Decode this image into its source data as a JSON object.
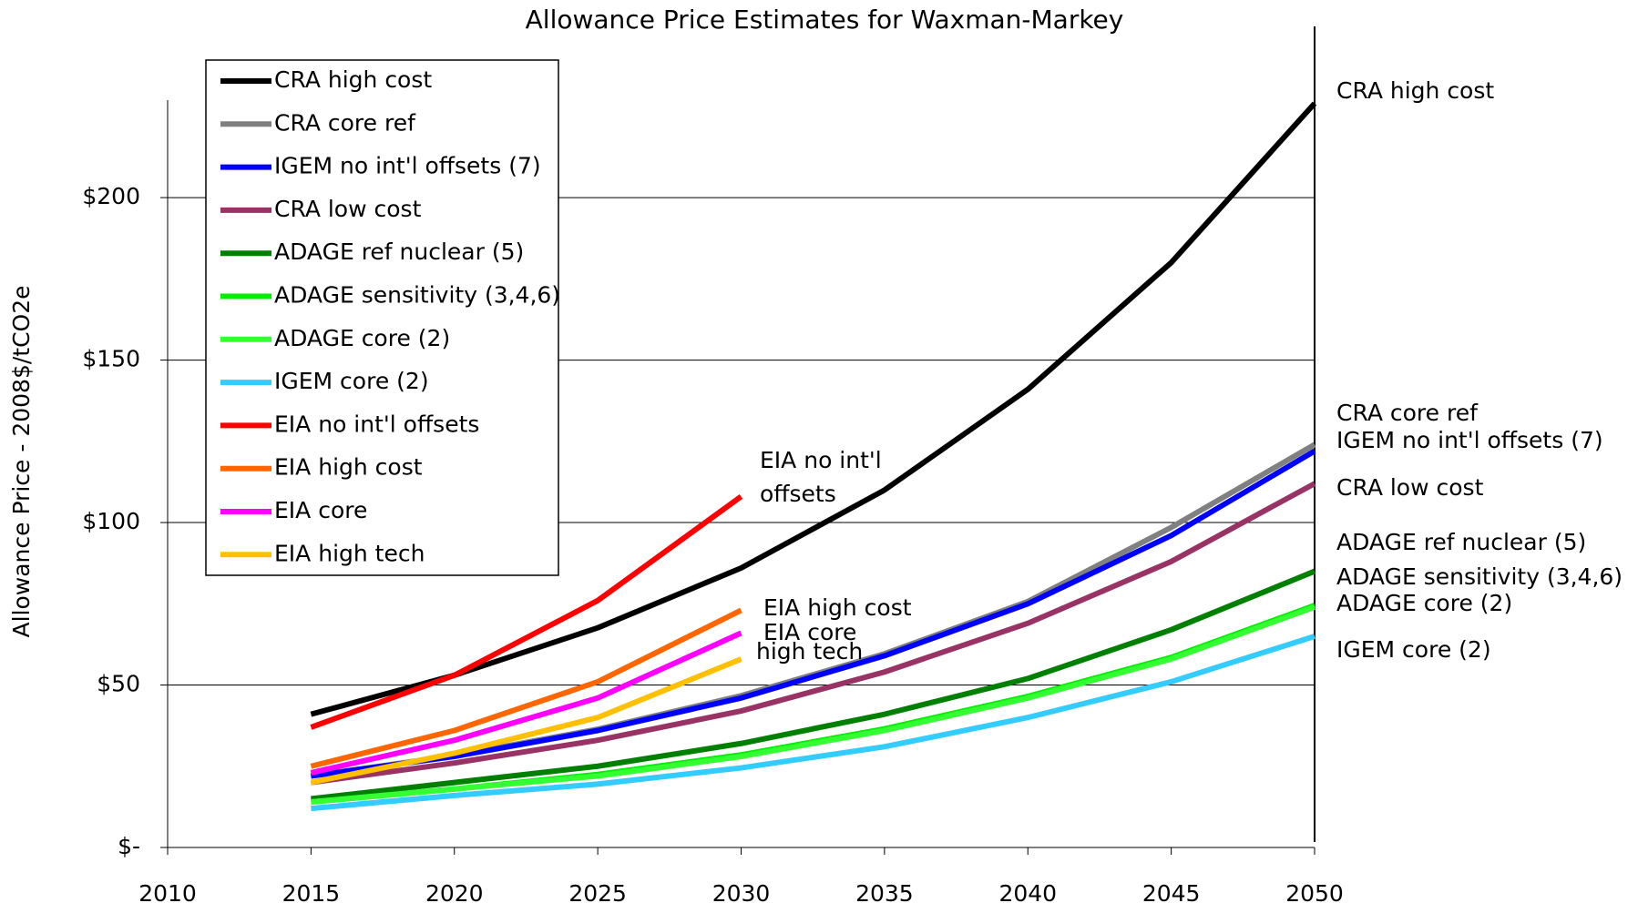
{
  "chart_data": {
    "type": "line",
    "title": "Allowance Price Estimates for Waxman-Markey",
    "y_label": "Allowance Price - 2008$/tCO2e",
    "x": [
      2015,
      2020,
      2025,
      2030,
      2035,
      2040,
      2045,
      2050
    ],
    "xlim": [
      2010,
      2050
    ],
    "xticks": [
      2010,
      2015,
      2020,
      2025,
      2030,
      2035,
      2040,
      2045,
      2050
    ],
    "ylim": [
      0,
      230
    ],
    "yticks": [
      {
        "value": 0,
        "label": "$-"
      },
      {
        "value": 50,
        "label": "$50"
      },
      {
        "value": 100,
        "label": "$100"
      },
      {
        "value": 150,
        "label": "$150"
      },
      {
        "value": 200,
        "label": "$200"
      }
    ],
    "grid": true,
    "legend": "upper left",
    "series": [
      {
        "name": "CRA high cost",
        "color": "#000000",
        "values": [
          41,
          53,
          67.6,
          86,
          110,
          141,
          180,
          229
        ]
      },
      {
        "name": "CRA core ref",
        "color": "#808080",
        "values": [
          22,
          28.3,
          36.4,
          46.7,
          59.6,
          75.7,
          98.5,
          124
        ]
      },
      {
        "name": "IGEM no int'l offsets (7)",
        "color": "#0000ff",
        "values": [
          22,
          28,
          36,
          46,
          59,
          75,
          96,
          122
        ]
      },
      {
        "name": "CRA low cost",
        "color": "#993366",
        "values": [
          20,
          26,
          33,
          42,
          54,
          69,
          88,
          112
        ]
      },
      {
        "name": "ADAGE ref nuclear (5)",
        "color": "#008000",
        "values": [
          15,
          20,
          25,
          32,
          41,
          52,
          67,
          85
        ]
      },
      {
        "name": "ADAGE sensitivity (3,4,6)",
        "color": "#00ee00",
        "values": [
          14,
          18,
          22.5,
          28.5,
          36.5,
          46.5,
          58.5,
          74.5
        ]
      },
      {
        "name": "ADAGE core (2)",
        "color": "#33ff33",
        "values": [
          14,
          18,
          22,
          28,
          36,
          46,
          58,
          74
        ]
      },
      {
        "name": "IGEM core (2)",
        "color": "#33ccff",
        "values": [
          12,
          16,
          19.5,
          24.5,
          31,
          40,
          51,
          65
        ]
      },
      {
        "name": "EIA no int'l offsets",
        "color": "#ff0000",
        "values": [
          37,
          53,
          76,
          108,
          null,
          null,
          null,
          null
        ]
      },
      {
        "name": "EIA high cost",
        "color": "#ff6600",
        "values": [
          25,
          36,
          51,
          73,
          null,
          null,
          null,
          null
        ]
      },
      {
        "name": "EIA core",
        "color": "#ff00ff",
        "values": [
          23,
          33,
          46,
          66,
          null,
          null,
          null,
          null
        ]
      },
      {
        "name": "EIA high tech",
        "color": "#ffc000",
        "values": [
          20,
          29,
          40,
          58,
          null,
          null,
          null,
          null
        ]
      }
    ],
    "annotations": [
      "CRA high cost",
      "CRA core ref",
      "IGEM no int'l offsets (7)",
      "CRA low cost",
      "ADAGE ref nuclear (5)",
      "ADAGE sensitivity (3,4,6)",
      "ADAGE core (2)",
      "IGEM core (2)",
      "EIA no int'l",
      "offsets",
      "EIA high cost",
      "EIA core",
      "high tech"
    ]
  }
}
